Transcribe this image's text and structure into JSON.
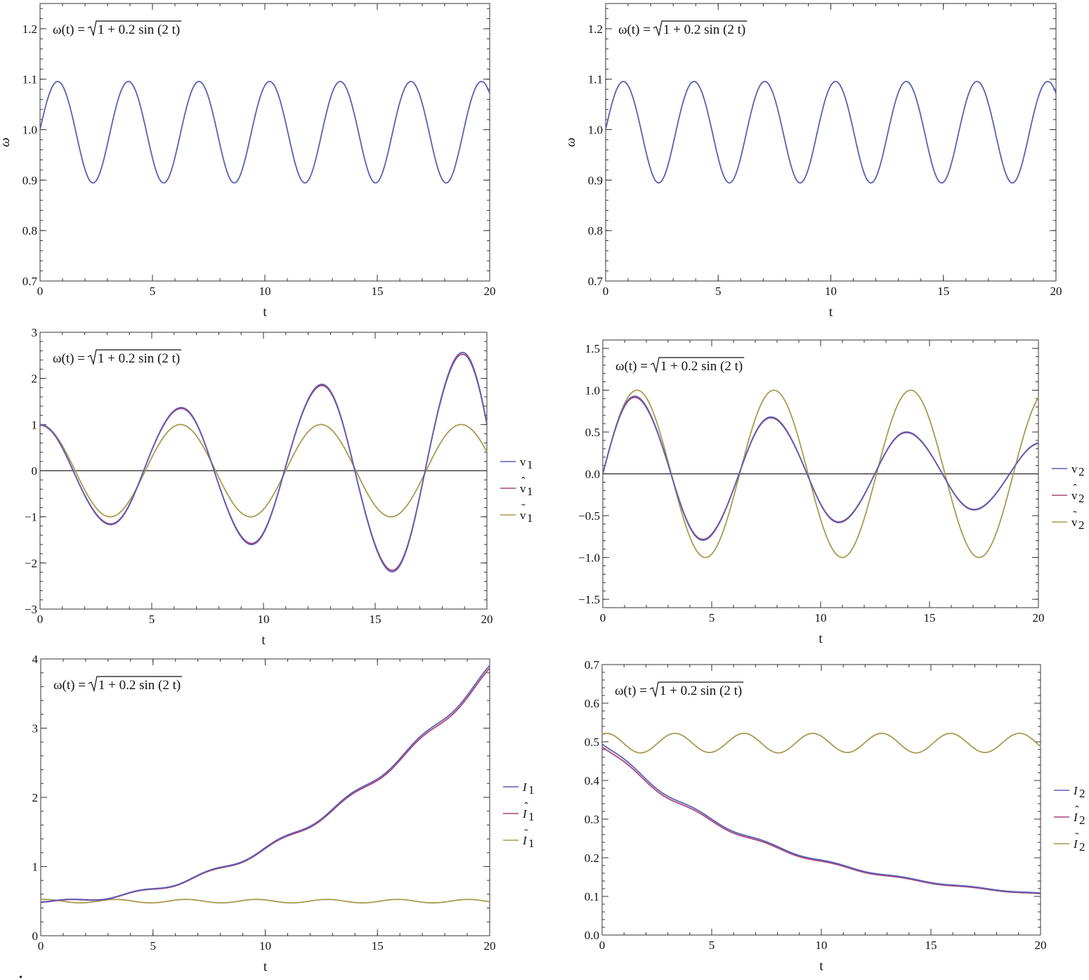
{
  "colors": {
    "blue": "#5a5fb3",
    "red": "#a8457a",
    "gold": "#a99a4f"
  },
  "trailing_mark": ".",
  "chart_data": [
    {
      "id": "omega-left",
      "type": "line",
      "annotation": {
        "lhs": "ω(t) = ",
        "radicand": "1 + 0.2 sin (2 t)"
      },
      "xlabel": "t",
      "ylabel": "ω",
      "xlim": [
        0,
        20
      ],
      "ylim": [
        0.7,
        1.25
      ],
      "xticks": [
        0,
        5,
        10,
        15,
        20
      ],
      "xtick_labels": [
        "0",
        "5",
        "10",
        "15",
        "20"
      ],
      "yticks": [
        0.7,
        0.8,
        0.9,
        1.0,
        1.1,
        1.2
      ],
      "ytick_labels": [
        "0.7",
        "0.8",
        "0.9",
        "1.0",
        "1.1",
        "1.2"
      ],
      "zero_line": false,
      "series": [
        {
          "color": "blue",
          "func": "omega",
          "legend": []
        }
      ]
    },
    {
      "id": "omega-right",
      "type": "line",
      "annotation": {
        "lhs": "ω(t) = ",
        "radicand": "1 + 0.2 sin (2 t)"
      },
      "xlabel": "t",
      "ylabel": "ω",
      "xlim": [
        0,
        20
      ],
      "ylim": [
        0.7,
        1.25
      ],
      "xticks": [
        0,
        5,
        10,
        15,
        20
      ],
      "xtick_labels": [
        "0",
        "5",
        "10",
        "15",
        "20"
      ],
      "yticks": [
        0.7,
        0.8,
        0.9,
        1.0,
        1.1,
        1.2
      ],
      "ytick_labels": [
        "0.7",
        "0.8",
        "0.9",
        "1.0",
        "1.1",
        "1.2"
      ],
      "zero_line": false,
      "series": [
        {
          "color": "blue",
          "func": "omega",
          "legend": []
        }
      ]
    },
    {
      "id": "v1",
      "type": "line",
      "annotation": {
        "lhs": "ω(t) = ",
        "radicand": "1 + 0.2 sin (2 t)"
      },
      "xlabel": "t",
      "ylabel": "",
      "xlim": [
        0,
        20
      ],
      "ylim": [
        -3,
        3
      ],
      "xticks": [
        0,
        5,
        10,
        15,
        20
      ],
      "xtick_labels": [
        "0",
        "5",
        "10",
        "15",
        "20"
      ],
      "yticks": [
        -3,
        -2,
        -1,
        0,
        1,
        2,
        3
      ],
      "ytick_labels": [
        "−3",
        "−2",
        "−1",
        "0",
        "1",
        "2",
        "3"
      ],
      "zero_line": true,
      "series": [
        {
          "color": "blue",
          "func": "v1",
          "scale": 1.0
        },
        {
          "color": "red",
          "func": "v1",
          "scale": 0.985
        },
        {
          "color": "gold",
          "func": "cos",
          "scale": 1.0
        }
      ],
      "legend": [
        {
          "color": "blue",
          "base": "v",
          "sub": "1",
          "accent": ""
        },
        {
          "color": "red",
          "base": "v",
          "sub": "1",
          "accent": "^"
        },
        {
          "color": "gold",
          "base": "v",
          "sub": "1",
          "accent": "~"
        }
      ]
    },
    {
      "id": "v2",
      "type": "line",
      "annotation": {
        "lhs": "ω(t) = ",
        "radicand": "1 + 0.2 sin (2 t)"
      },
      "xlabel": "t",
      "ylabel": "",
      "xlim": [
        0,
        20
      ],
      "ylim": [
        -1.6,
        1.6
      ],
      "xticks": [
        0,
        5,
        10,
        15,
        20
      ],
      "xtick_labels": [
        "0",
        "5",
        "10",
        "15",
        "20"
      ],
      "yticks": [
        -1.5,
        -1.0,
        -0.5,
        0.0,
        0.5,
        1.0,
        1.5
      ],
      "ytick_labels": [
        "−1.5",
        "−1.0",
        "−0.5",
        "0.0",
        "0.5",
        "1.0",
        "1.5"
      ],
      "zero_line": true,
      "series": [
        {
          "color": "blue",
          "func": "v2",
          "scale": 1.0
        },
        {
          "color": "red",
          "func": "v2",
          "scale": 0.985
        },
        {
          "color": "gold",
          "func": "sin",
          "scale": 1.0
        }
      ],
      "legend": [
        {
          "color": "blue",
          "base": "v",
          "sub": "2",
          "accent": ""
        },
        {
          "color": "red",
          "base": "v",
          "sub": "2",
          "accent": "^"
        },
        {
          "color": "gold",
          "base": "v",
          "sub": "2",
          "accent": "~"
        }
      ]
    },
    {
      "id": "I1",
      "type": "line",
      "annotation": {
        "lhs": "ω(t) = ",
        "radicand": "1 + 0.2 sin (2 t)"
      },
      "xlabel": "t",
      "ylabel": "",
      "xlim": [
        0,
        20
      ],
      "ylim": [
        0,
        4
      ],
      "xticks": [
        0,
        5,
        10,
        15,
        20
      ],
      "xtick_labels": [
        "0",
        "5",
        "10",
        "15",
        "20"
      ],
      "yticks": [
        0,
        1,
        2,
        3,
        4
      ],
      "ytick_labels": [
        "0",
        "1",
        "2",
        "3",
        "4"
      ],
      "zero_line": false,
      "series": [
        {
          "color": "blue",
          "func": "I1",
          "scale": 1.0
        },
        {
          "color": "red",
          "func": "I1",
          "scale": 0.99
        },
        {
          "color": "gold",
          "func": "I1t",
          "scale": 1.0
        }
      ],
      "legend": [
        {
          "color": "blue",
          "base": "I",
          "sub": "1",
          "accent": ""
        },
        {
          "color": "red",
          "base": "I",
          "sub": "1",
          "accent": "^"
        },
        {
          "color": "gold",
          "base": "I",
          "sub": "1",
          "accent": "~"
        }
      ]
    },
    {
      "id": "I2",
      "type": "line",
      "annotation": {
        "lhs": "ω(t) = ",
        "radicand": "1 + 0.2 sin (2 t)"
      },
      "xlabel": "t",
      "ylabel": "",
      "xlim": [
        0,
        20
      ],
      "ylim": [
        0,
        0.7
      ],
      "xticks": [
        0,
        5,
        10,
        15,
        20
      ],
      "xtick_labels": [
        "0",
        "5",
        "10",
        "15",
        "20"
      ],
      "yticks": [
        0,
        0.1,
        0.2,
        0.3,
        0.4,
        0.5,
        0.6,
        0.7
      ],
      "ytick_labels": [
        "0.0",
        "0.1",
        "0.2",
        "0.3",
        "0.4",
        "0.5",
        "0.6",
        "0.7"
      ],
      "zero_line": false,
      "series": [
        {
          "color": "blue",
          "func": "I2",
          "scale": 1.0
        },
        {
          "color": "red",
          "func": "I2",
          "scale": 0.985
        },
        {
          "color": "gold",
          "func": "I2t",
          "scale": 1.0
        }
      ],
      "legend": [
        {
          "color": "blue",
          "base": "I",
          "sub": "2",
          "accent": ""
        },
        {
          "color": "red",
          "base": "I",
          "sub": "2",
          "accent": "^"
        },
        {
          "color": "gold",
          "base": "I",
          "sub": "2",
          "accent": "~"
        }
      ]
    }
  ]
}
